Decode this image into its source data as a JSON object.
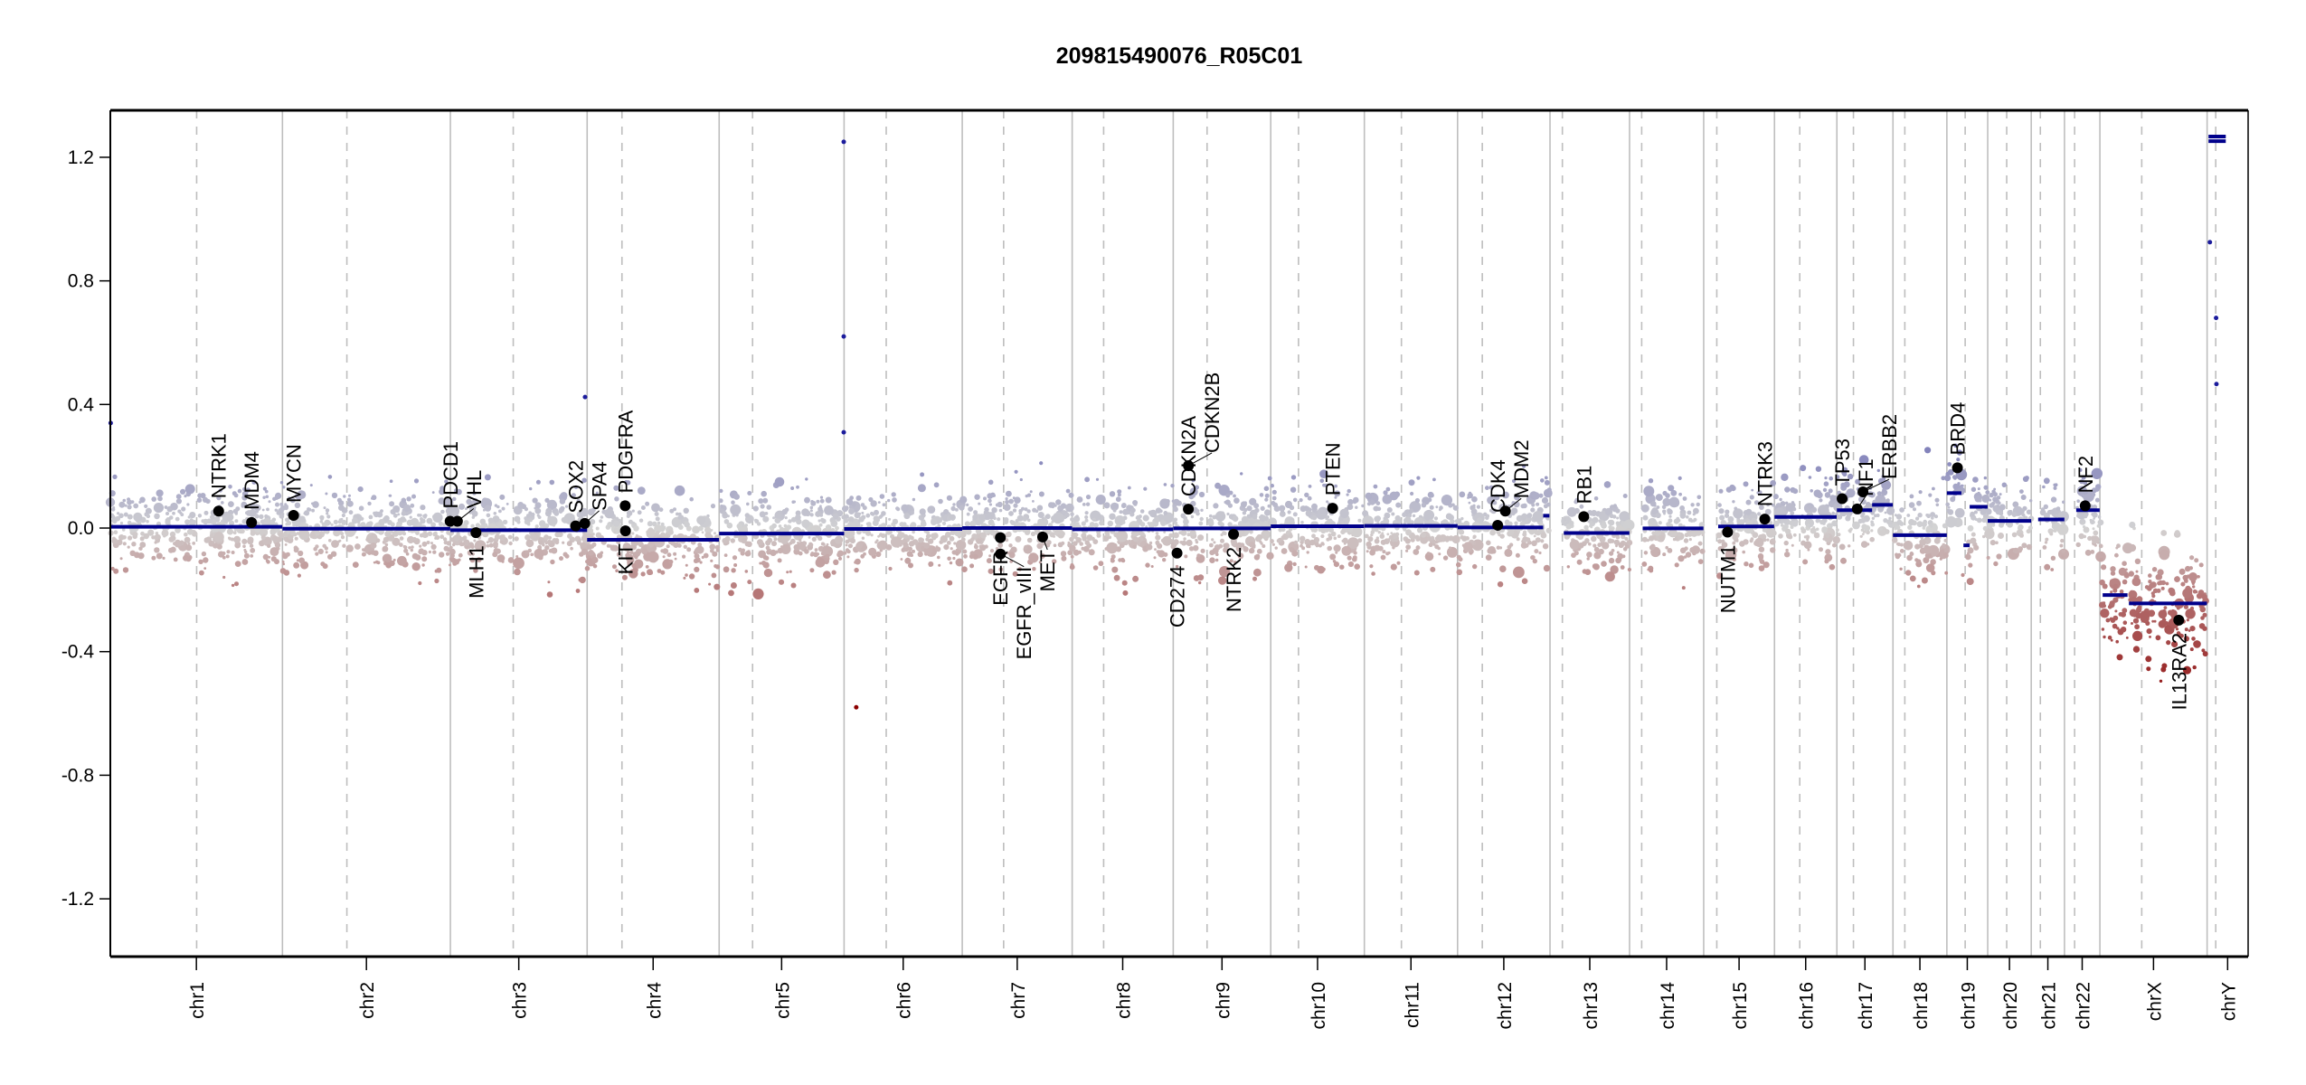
{
  "chart_data": {
    "type": "scatter",
    "title": "209815490076_R05C01",
    "xlabel": "",
    "ylabel": "",
    "ylim": [
      -1.387,
      1.352
    ],
    "yticks": [
      -1.2,
      -0.8,
      -0.4,
      0.0,
      0.4,
      0.8,
      1.2
    ],
    "ytick_labels": [
      "-1.2",
      "-0.8",
      "-0.4",
      "0.0",
      "0.4",
      "0.8",
      "1.2"
    ],
    "grid": "chromosome boundaries (solid) and centromeres (dashed)",
    "legend": "none",
    "chromosomes": [
      {
        "name": "chr1",
        "length_mb": 249.25,
        "centromere_mb": 125.0
      },
      {
        "name": "chr2",
        "length_mb": 243.2,
        "centromere_mb": 93.3
      },
      {
        "name": "chr3",
        "length_mb": 198.02,
        "centromere_mb": 91.0
      },
      {
        "name": "chr4",
        "length_mb": 191.15,
        "centromere_mb": 50.4
      },
      {
        "name": "chr5",
        "length_mb": 180.92,
        "centromere_mb": 48.4
      },
      {
        "name": "chr6",
        "length_mb": 171.12,
        "centromere_mb": 61.0
      },
      {
        "name": "chr7",
        "length_mb": 159.14,
        "centromere_mb": 59.9
      },
      {
        "name": "chr8",
        "length_mb": 146.36,
        "centromere_mb": 45.6
      },
      {
        "name": "chr9",
        "length_mb": 141.21,
        "centromere_mb": 49.0
      },
      {
        "name": "chr10",
        "length_mb": 135.53,
        "centromere_mb": 40.2
      },
      {
        "name": "chr11",
        "length_mb": 135.01,
        "centromere_mb": 53.7
      },
      {
        "name": "chr12",
        "length_mb": 133.85,
        "centromere_mb": 35.8
      },
      {
        "name": "chr13",
        "length_mb": 115.17,
        "centromere_mb": 17.9
      },
      {
        "name": "chr14",
        "length_mb": 107.35,
        "centromere_mb": 17.6
      },
      {
        "name": "chr15",
        "length_mb": 102.53,
        "centromere_mb": 19.0
      },
      {
        "name": "chr16",
        "length_mb": 90.35,
        "centromere_mb": 36.6
      },
      {
        "name": "chr17",
        "length_mb": 81.2,
        "centromere_mb": 24.0
      },
      {
        "name": "chr18",
        "length_mb": 78.08,
        "centromere_mb": 17.2
      },
      {
        "name": "chr19",
        "length_mb": 59.13,
        "centromere_mb": 26.5
      },
      {
        "name": "chr20",
        "length_mb": 63.03,
        "centromere_mb": 27.5
      },
      {
        "name": "chr21",
        "length_mb": 48.13,
        "centromere_mb": 13.2
      },
      {
        "name": "chr22",
        "length_mb": 51.3,
        "centromere_mb": 14.7
      },
      {
        "name": "chrX",
        "length_mb": 155.27,
        "centromere_mb": 60.6
      },
      {
        "name": "chrY",
        "length_mb": 59.37,
        "centromere_mb": 12.5
      }
    ],
    "segments": [
      {
        "chr": "chr1",
        "start": 0,
        "end": 249,
        "value": 0.004
      },
      {
        "chr": "chr2",
        "start": 0,
        "end": 243,
        "value": -0.002
      },
      {
        "chr": "chr3",
        "start": 0,
        "end": 198,
        "value": -0.007
      },
      {
        "chr": "chr4",
        "start": 0,
        "end": 191,
        "value": -0.038
      },
      {
        "chr": "chr5",
        "start": 0,
        "end": 181,
        "value": -0.018
      },
      {
        "chr": "chr6",
        "start": 0,
        "end": 171,
        "value": -0.003
      },
      {
        "chr": "chr7",
        "start": 0,
        "end": 159,
        "value": 0.0
      },
      {
        "chr": "chr8",
        "start": 0,
        "end": 146,
        "value": -0.004
      },
      {
        "chr": "chr9",
        "start": 0,
        "end": 141,
        "value": -0.001
      },
      {
        "chr": "chr10",
        "start": 0,
        "end": 135,
        "value": 0.006
      },
      {
        "chr": "chr11",
        "start": 0,
        "end": 135,
        "value": 0.007
      },
      {
        "chr": "chr12",
        "start": 0,
        "end": 124,
        "value": 0.002
      },
      {
        "chr": "chr12",
        "start": 124,
        "end": 133,
        "value": 0.04
      },
      {
        "chr": "chr13",
        "start": 20,
        "end": 115,
        "value": -0.016
      },
      {
        "chr": "chr14",
        "start": 19,
        "end": 107,
        "value": -0.001
      },
      {
        "chr": "chr15",
        "start": 21,
        "end": 102,
        "value": 0.005
      },
      {
        "chr": "chr16",
        "start": 0,
        "end": 90,
        "value": 0.036
      },
      {
        "chr": "chr17",
        "start": 0,
        "end": 51,
        "value": 0.058
      },
      {
        "chr": "chr17",
        "start": 51,
        "end": 81,
        "value": 0.075
      },
      {
        "chr": "chr18",
        "start": 0,
        "end": 78,
        "value": -0.023
      },
      {
        "chr": "chr19",
        "start": 0,
        "end": 21,
        "value": 0.113
      },
      {
        "chr": "chr19",
        "start": 24,
        "end": 33,
        "value": -0.056
      },
      {
        "chr": "chr19",
        "start": 33,
        "end": 59,
        "value": 0.069
      },
      {
        "chr": "chr20",
        "start": 0,
        "end": 63,
        "value": 0.023
      },
      {
        "chr": "chr21",
        "start": 10,
        "end": 48,
        "value": 0.028
      },
      {
        "chr": "chr22",
        "start": 17,
        "end": 51,
        "value": 0.058
      },
      {
        "chr": "chrX",
        "start": 4,
        "end": 40,
        "value": -0.217
      },
      {
        "chr": "chrX",
        "start": 42,
        "end": 155,
        "value": -0.244
      },
      {
        "chr": "chrY",
        "start": 2,
        "end": 27,
        "value": 1.267
      },
      {
        "chr": "chrY",
        "start": 2,
        "end": 27,
        "value": 1.252
      }
    ],
    "genes": [
      {
        "name": "NTRK1",
        "chr": "chr1",
        "pos": 156.8,
        "value": 0.055
      },
      {
        "name": "MDM4",
        "chr": "chr1",
        "pos": 204.5,
        "value": 0.018
      },
      {
        "name": "MYCN",
        "chr": "chr2",
        "pos": 16.1,
        "value": 0.041
      },
      {
        "name": "PDCD1",
        "chr": "chr2",
        "pos": 242.8,
        "value": 0.022
      },
      {
        "name": "VHL",
        "chr": "chr3",
        "pos": 10.2,
        "value": 0.022
      },
      {
        "name": "MLH1",
        "chr": "chr3",
        "pos": 37.0,
        "value": -0.015
      },
      {
        "name": "SOX2",
        "chr": "chr3",
        "pos": 181.4,
        "value": 0.007
      },
      {
        "name": "SPA4",
        "chr": "chr3",
        "pos": 194.6,
        "value": 0.015
      },
      {
        "name": "PDGFRA",
        "chr": "chr4",
        "pos": 55.1,
        "value": 0.072
      },
      {
        "name": "KIT",
        "chr": "chr4",
        "pos": 55.5,
        "value": -0.009
      },
      {
        "name": "EGFR",
        "chr": "chr7",
        "pos": 55.2,
        "value": -0.031
      },
      {
        "name": "EGFR_vIII",
        "chr": "chr7",
        "pos": 55.3,
        "value": -0.084
      },
      {
        "name": "MET",
        "chr": "chr7",
        "pos": 116.4,
        "value": -0.029
      },
      {
        "name": "CD274",
        "chr": "chr9",
        "pos": 5.5,
        "value": -0.081
      },
      {
        "name": "CDKN2A",
        "chr": "chr9",
        "pos": 21.9,
        "value": 0.061
      },
      {
        "name": "CDKN2B",
        "chr": "chr9",
        "pos": 22.0,
        "value": 0.202
      },
      {
        "name": "NTRK2",
        "chr": "chr9",
        "pos": 87.3,
        "value": -0.02
      },
      {
        "name": "PTEN",
        "chr": "chr10",
        "pos": 89.6,
        "value": 0.064
      },
      {
        "name": "CDK4",
        "chr": "chr12",
        "pos": 58.1,
        "value": 0.009
      },
      {
        "name": "MDM2",
        "chr": "chr12",
        "pos": 69.2,
        "value": 0.055
      },
      {
        "name": "RB1",
        "chr": "chr13",
        "pos": 48.9,
        "value": 0.037
      },
      {
        "name": "NUTM1",
        "chr": "chr15",
        "pos": 34.6,
        "value": -0.013
      },
      {
        "name": "NTRK3",
        "chr": "chr15",
        "pos": 88.5,
        "value": 0.029
      },
      {
        "name": "TP53",
        "chr": "chr17",
        "pos": 7.6,
        "value": 0.095
      },
      {
        "name": "NF1",
        "chr": "chr17",
        "pos": 29.5,
        "value": 0.062
      },
      {
        "name": "ERBB2",
        "chr": "chr17",
        "pos": 37.8,
        "value": 0.117
      },
      {
        "name": "BRD4",
        "chr": "chr19",
        "pos": 15.3,
        "value": 0.195
      },
      {
        "name": "NF2",
        "chr": "chr22",
        "pos": 30.0,
        "value": 0.072
      },
      {
        "name": "IL13RA2",
        "chr": "chrX",
        "pos": 114.2,
        "value": -0.298
      }
    ],
    "outliers": [
      {
        "chr": "chr1",
        "pos": 0.5,
        "value": 0.34
      },
      {
        "chr": "chr3",
        "pos": 195.0,
        "value": 0.424
      },
      {
        "chr": "chr5",
        "pos": 180.4,
        "value": 1.25
      },
      {
        "chr": "chr5",
        "pos": 180.4,
        "value": 0.62
      },
      {
        "chr": "chr5",
        "pos": 180.4,
        "value": 0.31
      },
      {
        "chr": "chr6",
        "pos": 17.6,
        "value": -0.58
      },
      {
        "chr": "chrY",
        "pos": 4.0,
        "value": 0.925
      },
      {
        "chr": "chrY",
        "pos": 13.0,
        "value": 0.68
      },
      {
        "chr": "chrY",
        "pos": 13.5,
        "value": 0.466
      }
    ]
  },
  "colors": {
    "segment": "#00008b",
    "gain": "#8f8fbf",
    "neutral": "#d3d3d3",
    "loss": "#b77b7b",
    "strong_gain": "#1c1c9c",
    "strong_loss": "#8b0000",
    "boundary": "#bebebe",
    "gene_point": "#000000"
  }
}
